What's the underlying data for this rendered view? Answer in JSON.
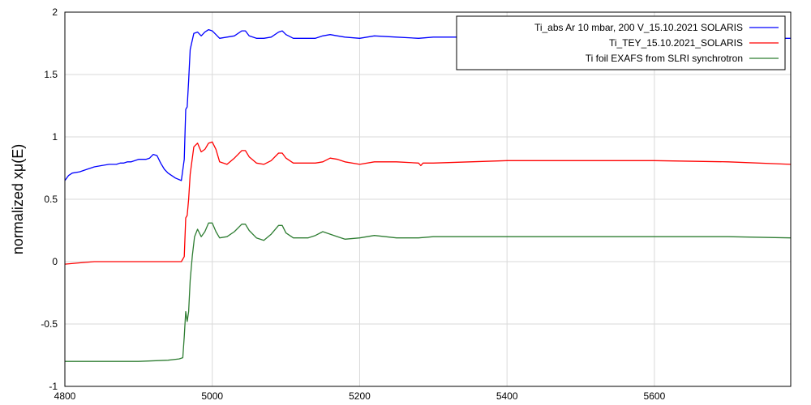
{
  "chart_data": {
    "type": "line",
    "title": "",
    "xlabel": "",
    "ylabel": "normalized xμ(E)",
    "xlim": [
      4800,
      5785
    ],
    "ylim": [
      -1,
      2
    ],
    "xticks": [
      4800,
      5000,
      5200,
      5400,
      5600
    ],
    "yticks": [
      -1,
      -0.5,
      0,
      0.5,
      1,
      1.5,
      2
    ],
    "ytick_labels": [
      "-1",
      "-0.5",
      "0",
      "0.5",
      "1",
      "1.5",
      "2"
    ],
    "grid": true,
    "legend_position": "top-right",
    "series": [
      {
        "name": "Ti_abs Ar 10 mbar, 200 V_15.10.2021 SOLARIS",
        "color": "#0000ff",
        "x": [
          4800,
          4805,
          4810,
          4820,
          4830,
          4840,
          4850,
          4860,
          4870,
          4875,
          4880,
          4885,
          4890,
          4900,
          4910,
          4915,
          4920,
          4925,
          4930,
          4935,
          4940,
          4950,
          4958,
          4962,
          4964,
          4966,
          4968,
          4970,
          4975,
          4980,
          4985,
          4990,
          4995,
          5000,
          5005,
          5010,
          5020,
          5030,
          5040,
          5045,
          5050,
          5060,
          5070,
          5080,
          5090,
          5095,
          5100,
          5110,
          5120,
          5130,
          5140,
          5150,
          5160,
          5170,
          5180,
          5200,
          5220,
          5250,
          5280,
          5300,
          5350,
          5400,
          5450,
          5500,
          5600,
          5700,
          5785
        ],
        "y": [
          0.65,
          0.69,
          0.71,
          0.72,
          0.74,
          0.76,
          0.77,
          0.78,
          0.78,
          0.79,
          0.79,
          0.8,
          0.8,
          0.82,
          0.82,
          0.83,
          0.86,
          0.85,
          0.79,
          0.74,
          0.71,
          0.67,
          0.65,
          0.82,
          1.22,
          1.24,
          1.45,
          1.7,
          1.83,
          1.84,
          1.81,
          1.84,
          1.86,
          1.85,
          1.82,
          1.79,
          1.8,
          1.81,
          1.85,
          1.85,
          1.81,
          1.79,
          1.79,
          1.8,
          1.84,
          1.85,
          1.82,
          1.79,
          1.79,
          1.79,
          1.79,
          1.81,
          1.82,
          1.81,
          1.8,
          1.79,
          1.81,
          1.8,
          1.79,
          1.8,
          1.8,
          1.8,
          1.8,
          1.8,
          1.79,
          1.79,
          1.79
        ]
      },
      {
        "name": "Ti_TEY_15.10.2021_SOLARIS",
        "color": "#ff0000",
        "x": [
          4800,
          4820,
          4840,
          4860,
          4880,
          4900,
          4920,
          4940,
          4950,
          4958,
          4962,
          4964,
          4966,
          4968,
          4970,
          4975,
          4980,
          4985,
          4990,
          4995,
          5000,
          5005,
          5010,
          5020,
          5030,
          5040,
          5045,
          5050,
          5060,
          5070,
          5080,
          5090,
          5095,
          5100,
          5110,
          5120,
          5130,
          5140,
          5150,
          5160,
          5170,
          5180,
          5200,
          5220,
          5250,
          5280,
          5283,
          5286,
          5290,
          5300,
          5350,
          5400,
          5450,
          5500,
          5600,
          5700,
          5785
        ],
        "y": [
          -0.02,
          -0.01,
          0.0,
          0.0,
          0.0,
          0.0,
          0.0,
          0.0,
          0.0,
          0.0,
          0.04,
          0.35,
          0.37,
          0.5,
          0.7,
          0.92,
          0.95,
          0.88,
          0.9,
          0.95,
          0.96,
          0.9,
          0.8,
          0.78,
          0.83,
          0.89,
          0.89,
          0.84,
          0.79,
          0.78,
          0.81,
          0.87,
          0.87,
          0.83,
          0.79,
          0.79,
          0.79,
          0.79,
          0.8,
          0.83,
          0.82,
          0.8,
          0.78,
          0.8,
          0.8,
          0.79,
          0.77,
          0.79,
          0.79,
          0.79,
          0.8,
          0.81,
          0.81,
          0.81,
          0.81,
          0.8,
          0.78
        ]
      },
      {
        "name": "Ti foil EXAFS from SLRI synchrotron",
        "color": "#2e7d32",
        "x": [
          4800,
          4850,
          4900,
          4940,
          4955,
          4960,
          4962,
          4964,
          4966,
          4968,
          4970,
          4973,
          4976,
          4980,
          4985,
          4990,
          4995,
          5000,
          5005,
          5010,
          5020,
          5030,
          5040,
          5045,
          5050,
          5060,
          5070,
          5080,
          5090,
          5095,
          5100,
          5110,
          5120,
          5130,
          5140,
          5150,
          5160,
          5170,
          5180,
          5200,
          5220,
          5250,
          5280,
          5300,
          5350,
          5400,
          5450,
          5500,
          5600,
          5700,
          5785
        ],
        "y": [
          -0.8,
          -0.8,
          -0.8,
          -0.79,
          -0.78,
          -0.77,
          -0.6,
          -0.4,
          -0.48,
          -0.4,
          -0.15,
          0.05,
          0.2,
          0.26,
          0.2,
          0.24,
          0.31,
          0.31,
          0.24,
          0.19,
          0.2,
          0.24,
          0.3,
          0.3,
          0.25,
          0.19,
          0.17,
          0.22,
          0.29,
          0.29,
          0.23,
          0.19,
          0.19,
          0.19,
          0.21,
          0.24,
          0.22,
          0.2,
          0.18,
          0.19,
          0.21,
          0.19,
          0.19,
          0.2,
          0.2,
          0.2,
          0.2,
          0.2,
          0.2,
          0.2,
          0.19
        ]
      }
    ]
  }
}
